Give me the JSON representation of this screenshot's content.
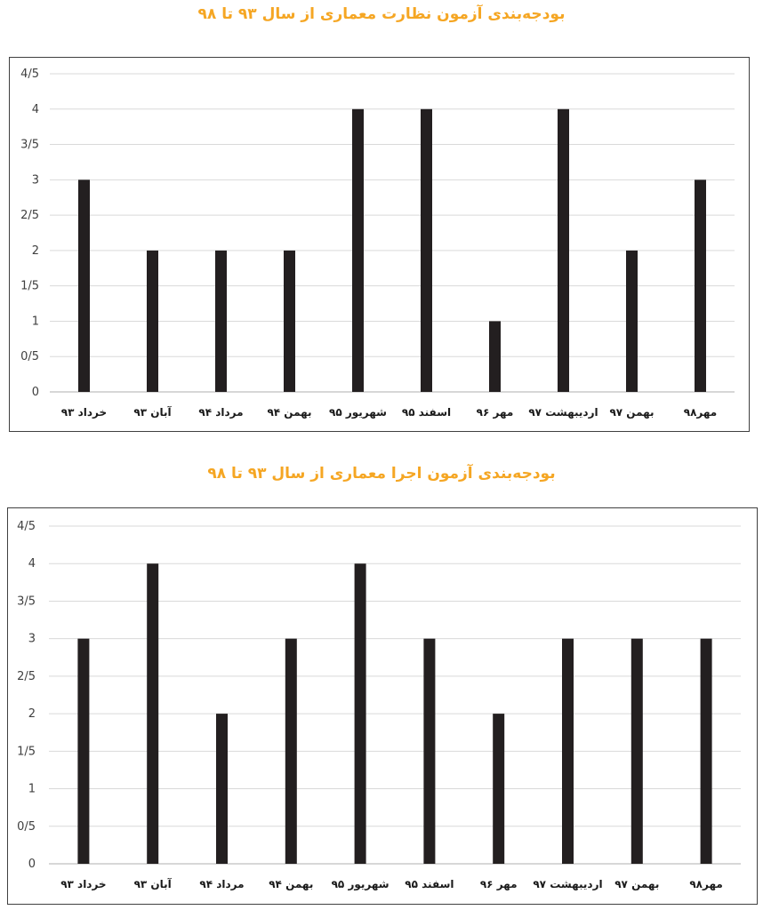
{
  "charts": [
    {
      "title": "بودجه‌بندی آزمون نظارت معماری از سال ۹۳ تا ۹۸"
    },
    {
      "title": "بودجه‌بندی آزمون اجرا معماری از سال ۹۳ تا ۹۸"
    }
  ],
  "chart_data": [
    {
      "type": "bar",
      "title": "بودجه‌بندی آزمون نظارت معماری از سال ۹۳ تا ۹۸",
      "categories": [
        "خرداد ۹۳",
        "آبان ۹۳",
        "مرداد ۹۴",
        "بهمن ۹۴",
        "شهریور ۹۵",
        "اسفند ۹۵",
        "مهر ۹۶",
        "اردیبهشت ۹۷",
        "بهمن ۹۷",
        "مهر۹۸"
      ],
      "values": [
        3,
        2,
        2,
        2,
        4,
        4,
        1,
        4,
        2,
        3
      ],
      "ylim": [
        0,
        4.5
      ],
      "yticks": [
        "0",
        "0/5",
        "1",
        "1/5",
        "2",
        "2/5",
        "3",
        "3/5",
        "4",
        "4/5"
      ],
      "grid": true,
      "bar_color": "#231f20",
      "grid_color": "#d9d9d9"
    },
    {
      "type": "bar",
      "title": "بودجه‌بندی آزمون اجرا معماری از سال ۹۳ تا ۹۸",
      "categories": [
        "خرداد ۹۳",
        "آبان ۹۳",
        "مرداد ۹۴",
        "بهمن ۹۴",
        "شهریور ۹۵",
        "اسفند ۹۵",
        "مهر ۹۶",
        "اردیبهشت ۹۷",
        "بهمن ۹۷",
        "مهر۹۸"
      ],
      "values": [
        3,
        4,
        2,
        3,
        4,
        3,
        2,
        3,
        3,
        3
      ],
      "ylim": [
        0,
        4.5
      ],
      "yticks": [
        "0",
        "0/5",
        "1",
        "1/5",
        "2",
        "2/5",
        "3",
        "3/5",
        "4",
        "4/5"
      ],
      "grid": true,
      "bar_color": "#231f20",
      "grid_color": "#d9d9d9"
    }
  ]
}
